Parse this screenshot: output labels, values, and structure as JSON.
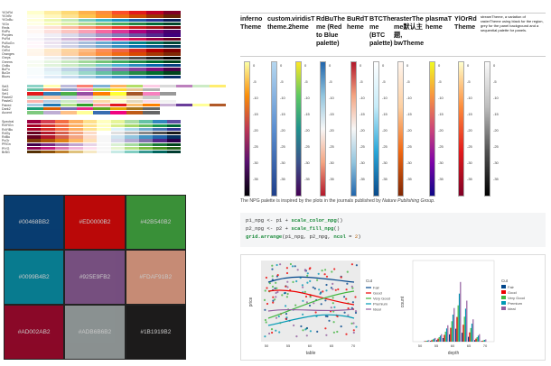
{
  "brewer": {
    "sequential": [
      "YlOrRd",
      "YlOrBr",
      "YlGnBu",
      "YlGn",
      "Reds",
      "RdPu",
      "Purples",
      "PuRd",
      "PuBuGn",
      "PuBu",
      "OrRd",
      "Oranges",
      "Greys",
      "Greens",
      "GnBu",
      "BuPu",
      "BuGn",
      "Blues"
    ],
    "qualitative": [
      "Set3",
      "Set2",
      "Set1",
      "Pastel2",
      "Pastel1",
      "Paired",
      "Dark2",
      "Accent"
    ],
    "diverging": [
      "Spectral",
      "RdYlGn",
      "RdYlBu",
      "RdGy",
      "RdBu",
      "PuOr",
      "PRGn",
      "PiYG",
      "BrBG"
    ]
  },
  "npg": {
    "tiles": [
      "#00468BB2",
      "#ED0000B2",
      "#42B540B2",
      "#0099B4B2",
      "#925E9FB2",
      "#FDAF91B2",
      "#AD002AB2",
      "#ADB6B6B2",
      "#1B1919B2"
    ],
    "colors": [
      "#00468B",
      "#ED0000",
      "#42B540",
      "#0099B4",
      "#925E9F",
      "#FDAF91",
      "#AD002A",
      "#ADB6B6",
      "#1B1919"
    ]
  },
  "themes": {
    "columns": [
      {
        "label": "inferno Theme",
        "ticks": [
          "0",
          "-5",
          "-10",
          "-15",
          "-20",
          "-25",
          "-30",
          "-35"
        ]
      },
      {
        "label": "custom. theme.2",
        "ticks": [
          "0",
          "-5",
          "-10",
          "-15",
          "-20",
          "-25",
          "-30",
          "-35"
        ]
      },
      {
        "label": "viridisT heme",
        "ticks": [
          "0",
          "-5",
          "-10",
          "-15",
          "-20",
          "-25",
          "-30",
          "-35"
        ]
      },
      {
        "label": "RdBuThe me (Red to Blue palette)",
        "ticks": [
          "0",
          "-5",
          "-10",
          "-15",
          "-20",
          "-25",
          "-30",
          "-35"
        ]
      },
      {
        "label": "BuRdT heme",
        "ticks": [
          "0",
          "-5",
          "-10",
          "-15",
          "-20",
          "-25",
          "-30",
          "-35"
        ]
      },
      {
        "label": "BTCThe me (BTC palette)",
        "ticks": [
          "0",
          "-5",
          "-10",
          "-15",
          "-20",
          "-25",
          "-30",
          "-35"
        ]
      },
      {
        "label": "rasterThe me默认主题, bwTheme",
        "ticks": [
          "0",
          "-5",
          "-10",
          "-15",
          "-20",
          "-25",
          "-30",
          "-35"
        ]
      },
      {
        "label": "plasmaT heme",
        "ticks": [
          "0",
          "-5",
          "-10",
          "-15",
          "-20",
          "-25",
          "-30",
          "-35"
        ]
      },
      {
        "label": "YlOrRd Theme",
        "ticks": [
          "0",
          "-5",
          "-10",
          "-15",
          "-20",
          "-25",
          "-30",
          "-35"
        ]
      },
      {
        "label": "streamTheme, a variation of rasterTheme using black for the region, grey for the panel background and a sequential palette for panels.",
        "ticks": [
          "0",
          "-5",
          "-10",
          "-15",
          "-20",
          "-25",
          "-30",
          "-35"
        ]
      }
    ]
  },
  "npg_text": {
    "before": "The NPG palette is inspired by the plots in the journals published by ",
    "italic": "Nature Publishing Group",
    "after": "."
  },
  "code": {
    "line1_a": "p1_npg <- p1 + ",
    "line1_fn": "scale_color_npg",
    "line1_b": "()",
    "line2_a": "p2_npg <- p2 + ",
    "line2_fn": "scale_fill_npg",
    "line2_b": "()",
    "line3_fn": "grid.arrange",
    "line3_a": "(p1_npg, p2_npg, ",
    "line3_kw": "ncol",
    "line3_b": " = ",
    "line3_num": "2",
    "line3_c": ")"
  },
  "plots": {
    "left": {
      "xlabel": "table",
      "ylabel": "price",
      "legend_title": "Cut",
      "legend": [
        "Fair",
        "Good",
        "Very Good",
        "Premium",
        "Ideal"
      ],
      "xticks": [
        "50",
        "55",
        "60",
        "65",
        "70"
      ]
    },
    "right": {
      "xlabel": "depth",
      "ylabel": "count",
      "legend_title": "Cut",
      "legend": [
        "Fair",
        "Good",
        "Very Good",
        "Premium",
        "Ideal"
      ],
      "xticks": [
        "50",
        "55",
        "60",
        "65",
        "70"
      ]
    }
  }
}
